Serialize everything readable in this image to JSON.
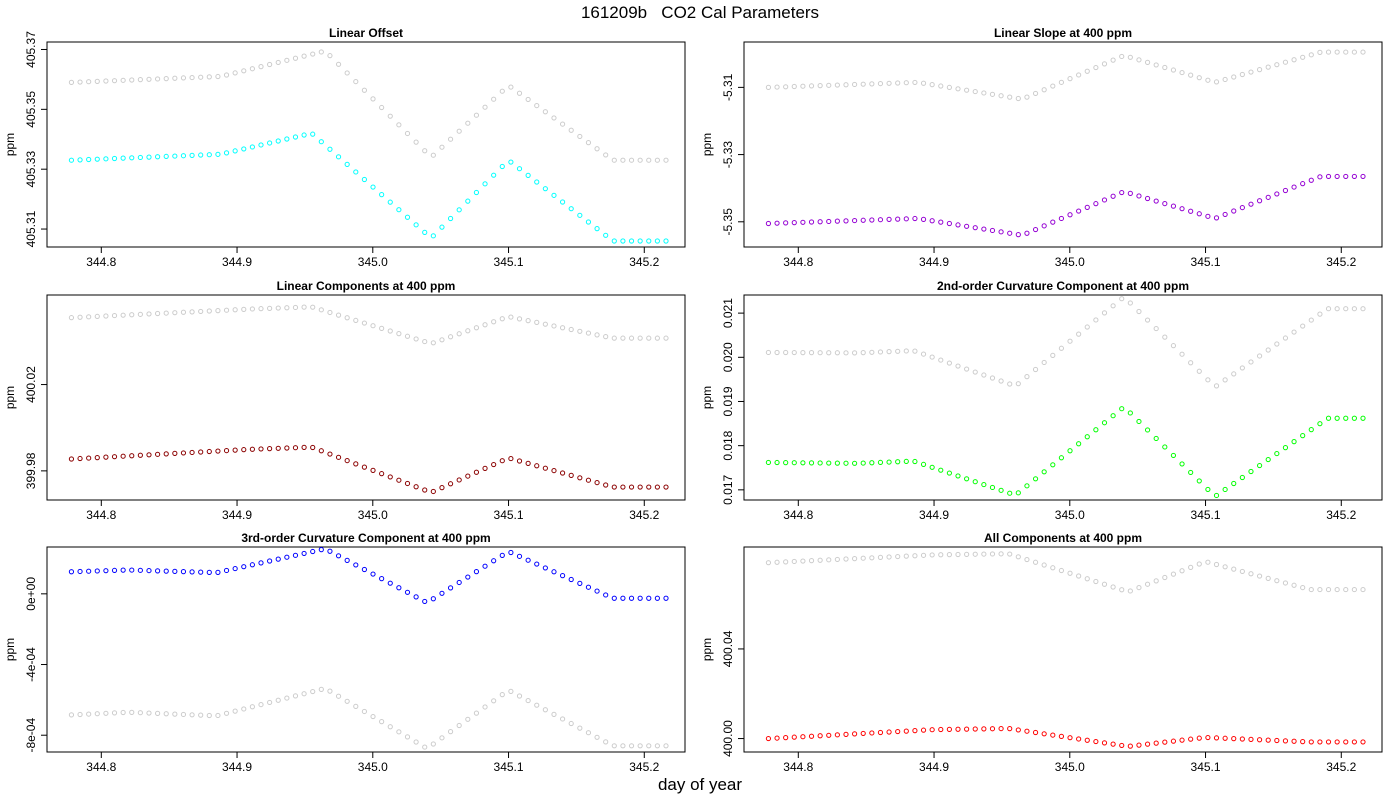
{
  "figure": {
    "title": "161209b   CO2 Cal Parameters",
    "xlabel": "day of year"
  },
  "chart_data": [
    {
      "type": "scatter",
      "title": "Linear Offset",
      "xlabel": "day of year",
      "ylabel": "ppm",
      "xlim": [
        344.76,
        345.23
      ],
      "xticks": [
        "344.8",
        "344.9",
        "345.0",
        "345.1",
        "345.2"
      ],
      "xtick_values": [
        344.8,
        344.9,
        345.0,
        345.1,
        345.2
      ],
      "ylim": [
        405.304,
        405.3725
      ],
      "yticks": [
        "405.31",
        "405.33",
        "405.35",
        "405.37"
      ],
      "ytick_values": [
        405.31,
        405.33,
        405.35,
        405.37
      ],
      "grid": false,
      "legend": "none",
      "series": [
        {
          "color": "#cccccc",
          "knots": [
            [
              344.778,
              405.359
            ],
            [
              344.888,
              405.361
            ],
            [
              344.965,
              405.3695
            ],
            [
              345.043,
              405.334
            ],
            [
              345.1,
              405.358
            ],
            [
              345.177,
              405.333
            ],
            [
              345.216,
              405.333
            ]
          ]
        },
        {
          "color": "#00ffff",
          "knots": [
            [
              344.778,
              405.333
            ],
            [
              344.888,
              405.335
            ],
            [
              344.955,
              405.342
            ],
            [
              345.043,
              405.307
            ],
            [
              345.1,
              405.333
            ],
            [
              345.177,
              405.306
            ],
            [
              345.216,
              405.306
            ]
          ]
        }
      ]
    },
    {
      "type": "scatter",
      "title": "Linear Slope at 400 ppm",
      "xlabel": "day of year",
      "ylabel": "ppm",
      "xlim": [
        344.76,
        345.23
      ],
      "xticks": [
        "344.8",
        "344.9",
        "345.0",
        "345.1",
        "345.2"
      ],
      "xtick_values": [
        344.8,
        344.9,
        345.0,
        345.1,
        345.2
      ],
      "ylim": [
        -5.3575,
        -5.2965
      ],
      "yticks": [
        "-5.35",
        "-5.33",
        "-5.31"
      ],
      "ytick_values": [
        -5.35,
        -5.33,
        -5.31
      ],
      "grid": false,
      "legend": "none",
      "series": [
        {
          "color": "#cccccc",
          "knots": [
            [
              344.778,
              -5.31
            ],
            [
              344.888,
              -5.3085
            ],
            [
              344.965,
              -5.3135
            ],
            [
              345.04,
              -5.3005
            ],
            [
              345.107,
              -5.3085
            ],
            [
              345.185,
              -5.2995
            ],
            [
              345.216,
              -5.2995
            ]
          ]
        },
        {
          "color": "#9400d3",
          "knots": [
            [
              344.778,
              -5.3505
            ],
            [
              344.888,
              -5.349
            ],
            [
              344.965,
              -5.354
            ],
            [
              345.04,
              -5.341
            ],
            [
              345.107,
              -5.349
            ],
            [
              345.185,
              -5.3365
            ],
            [
              345.216,
              -5.3365
            ]
          ]
        }
      ]
    },
    {
      "type": "scatter",
      "title": "Linear Components at 400 ppm",
      "xlabel": "day of year",
      "ylabel": "ppm",
      "xlim": [
        344.76,
        345.23
      ],
      "xticks": [
        "344.8",
        "344.9",
        "345.0",
        "345.1",
        "345.2"
      ],
      "xtick_values": [
        344.8,
        344.9,
        345.0,
        345.1,
        345.2
      ],
      "ylim": [
        399.9665,
        400.0615
      ],
      "yticks": [
        "399.98",
        "400.02"
      ],
      "ytick_values": [
        399.98,
        400.02
      ],
      "grid": false,
      "legend": "none",
      "series": [
        {
          "color": "#cccccc",
          "knots": [
            [
              344.778,
              400.051
            ],
            [
              344.91,
              400.055
            ],
            [
              344.955,
              400.056
            ],
            [
              345.043,
              400.039
            ],
            [
              345.1,
              400.0515
            ],
            [
              345.177,
              400.0415
            ],
            [
              345.216,
              400.0415
            ]
          ]
        },
        {
          "color": "#8b0000",
          "knots": [
            [
              344.778,
              399.9855
            ],
            [
              344.91,
              399.99
            ],
            [
              344.955,
              399.991
            ],
            [
              345.043,
              399.97
            ],
            [
              345.1,
              399.986
            ],
            [
              345.177,
              399.9725
            ],
            [
              345.216,
              399.9725
            ]
          ]
        }
      ]
    },
    {
      "type": "scatter",
      "title": "2nd-order Curvature Component at 400 ppm",
      "xlabel": "day of year",
      "ylabel": "ppm",
      "xlim": [
        344.76,
        345.23
      ],
      "xticks": [
        "344.8",
        "344.9",
        "345.0",
        "345.1",
        "345.2"
      ],
      "xtick_values": [
        344.8,
        344.9,
        345.0,
        345.1,
        345.2
      ],
      "ylim": [
        0.01677,
        0.02141
      ],
      "yticks": [
        "0.017",
        "0.018",
        "0.019",
        "0.020",
        "0.021"
      ],
      "ytick_values": [
        0.017,
        0.018,
        0.019,
        0.02,
        0.021
      ],
      "grid": false,
      "legend": "none",
      "series": [
        {
          "color": "#cccccc",
          "knots": [
            [
              344.778,
              0.02011
            ],
            [
              344.843,
              0.0201
            ],
            [
              344.885,
              0.02015
            ],
            [
              344.96,
              0.01935
            ],
            [
              345.04,
              0.02137
            ],
            [
              345.107,
              0.01933
            ],
            [
              345.19,
              0.0211
            ],
            [
              345.216,
              0.0211
            ]
          ]
        },
        {
          "color": "#00ff00",
          "knots": [
            [
              344.778,
              0.01762
            ],
            [
              344.843,
              0.0176
            ],
            [
              344.885,
              0.01765
            ],
            [
              344.96,
              0.01688
            ],
            [
              345.04,
              0.01888
            ],
            [
              345.107,
              0.01685
            ],
            [
              345.19,
              0.01862
            ],
            [
              345.216,
              0.01862
            ]
          ]
        }
      ]
    },
    {
      "type": "scatter",
      "title": "3rd-order Curvature Component at 400 ppm",
      "xlabel": "day of year",
      "ylabel": "ppm",
      "xlim": [
        344.76,
        345.23
      ],
      "xticks": [
        "344.8",
        "344.9",
        "345.0",
        "345.1",
        "345.2"
      ],
      "xtick_values": [
        344.8,
        344.9,
        345.0,
        345.1,
        345.2
      ],
      "ylim": [
        -0.000895,
        0.000265
      ],
      "yticks": [
        "-8e-04",
        "-4e-04",
        "0e+00"
      ],
      "ytick_values": [
        -0.0008,
        -0.0004,
        0.0
      ],
      "grid": false,
      "legend": "none",
      "series": [
        {
          "color": "#0000ff",
          "knots": [
            [
              344.778,
              0.000125
            ],
            [
              344.82,
              0.000135
            ],
            [
              344.885,
              0.00012
            ],
            [
              344.965,
              0.000255
            ],
            [
              345.04,
              -5e-05
            ],
            [
              345.1,
              0.00024
            ],
            [
              345.177,
              -2.5e-05
            ],
            [
              345.216,
              -2.5e-05
            ]
          ]
        },
        {
          "color": "#cccccc",
          "knots": [
            [
              344.778,
              -0.000685
            ],
            [
              344.82,
              -0.00067
            ],
            [
              344.885,
              -0.00069
            ],
            [
              344.965,
              -0.000535
            ],
            [
              345.04,
              -0.000875
            ],
            [
              345.1,
              -0.000545
            ],
            [
              345.177,
              -0.00086
            ],
            [
              345.216,
              -0.00086
            ]
          ]
        }
      ]
    },
    {
      "type": "scatter",
      "title": "All Components at 400 ppm",
      "xlabel": "day of year",
      "ylabel": "ppm",
      "xlim": [
        344.76,
        345.23
      ],
      "xticks": [
        "344.8",
        "344.9",
        "345.0",
        "345.1",
        "345.2"
      ],
      "xtick_values": [
        344.8,
        344.9,
        345.0,
        345.1,
        345.2
      ],
      "ylim": [
        399.994,
        400.0855
      ],
      "yticks": [
        "400.00",
        "400.04"
      ],
      "ytick_values": [
        400.0,
        400.04
      ],
      "grid": false,
      "legend": "none",
      "series": [
        {
          "color": "#cccccc",
          "knots": [
            [
              344.778,
              400.0785
            ],
            [
              344.9,
              400.082
            ],
            [
              344.955,
              400.0825
            ],
            [
              345.043,
              400.0655
            ],
            [
              345.1,
              400.079
            ],
            [
              345.177,
              400.0665
            ],
            [
              345.216,
              400.0665
            ]
          ]
        },
        {
          "color": "#ff0000",
          "knots": [
            [
              344.778,
              400.0
            ],
            [
              344.9,
              400.004
            ],
            [
              344.955,
              400.0045
            ],
            [
              345.043,
              399.9965
            ],
            [
              345.1,
              400.0005
            ],
            [
              345.177,
              399.9985
            ],
            [
              345.216,
              399.9985
            ]
          ]
        }
      ]
    }
  ]
}
